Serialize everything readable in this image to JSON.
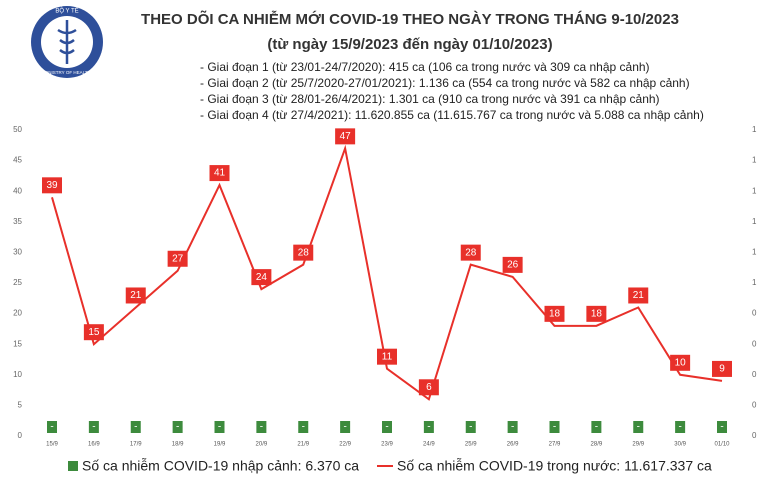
{
  "logo": {
    "top": "BỘ Y TẾ",
    "bottom": "MINISTRY OF HEALTH"
  },
  "chart_data": {
    "type": "line",
    "title": "THEO DÕI CA NHIỄM MỚI COVID-19 THEO NGÀY TRONG THÁNG 9-10/2023",
    "subtitle": "(từ ngày 15/9/2023 đến ngày 01/10/2023)",
    "notes": [
      "- Giai đoạn 1 (từ 23/01-24/7/2020): 415 ca (106 ca trong nước và 309 ca nhập cảnh)",
      "- Giai đoạn 2 (từ 25/7/2020-27/01/2021): 1.136 ca (554 ca trong nước và 582 ca nhập cảnh)",
      "- Giai đoạn 3 (từ 28/01-26/4/2021): 1.301 ca (910 ca trong nước và 391 ca nhập cảnh)",
      "- Giai đoạn 4 (từ 27/4/2021): 11.620.855 ca (11.615.767 ca trong nước và 5.088 ca nhập cảnh)"
    ],
    "categories": [
      "15/9",
      "16/9",
      "17/9",
      "18/9",
      "19/9",
      "20/9",
      "21/9",
      "22/9",
      "23/9",
      "24/9",
      "25/9",
      "26/9",
      "27/9",
      "28/9",
      "29/9",
      "30/9",
      "01/10"
    ],
    "series": [
      {
        "name": "Số ca nhiễm COVID-19 nhập cảnh: 6.370 ca",
        "type": "bar",
        "axis": "y2",
        "color": "#3d8b3d",
        "values": [
          0,
          0,
          0,
          0,
          0,
          0,
          0,
          0,
          0,
          0,
          0,
          0,
          0,
          0,
          0,
          0,
          0
        ],
        "value_labels": [
          "-",
          "-",
          "-",
          "-",
          "-",
          "-",
          "-",
          "-",
          "-",
          "-",
          "-",
          "-",
          "-",
          "-",
          "-",
          "-",
          "-"
        ]
      },
      {
        "name": "Số ca nhiễm COVID-19 trong nước: 11.617.337 ca",
        "type": "line",
        "color": "#e8302a",
        "values": [
          39,
          15,
          21,
          27,
          41,
          24,
          28,
          47,
          11,
          6,
          28,
          26,
          18,
          18,
          21,
          10,
          9
        ]
      }
    ],
    "ylim": [
      0,
      50
    ],
    "yticks": [
      0,
      5,
      10,
      15,
      20,
      25,
      30,
      35,
      40,
      45,
      50
    ],
    "y2lim": [
      0,
      1
    ],
    "y2ticks": [
      0,
      {
        "value": 0.1,
        "label": "0"
      },
      {
        "value": 0.2,
        "label": "0"
      },
      {
        "value": 0.3,
        "label": "0"
      },
      {
        "value": 0.4,
        "label": "0"
      },
      {
        "value": 0.5,
        "label": "1"
      },
      {
        "value": 0.6,
        "label": "1"
      },
      {
        "value": 0.7,
        "label": "1"
      },
      {
        "value": 0.8,
        "label": "1"
      },
      {
        "value": 0.9,
        "label": "1"
      },
      1
    ],
    "grid": false
  }
}
